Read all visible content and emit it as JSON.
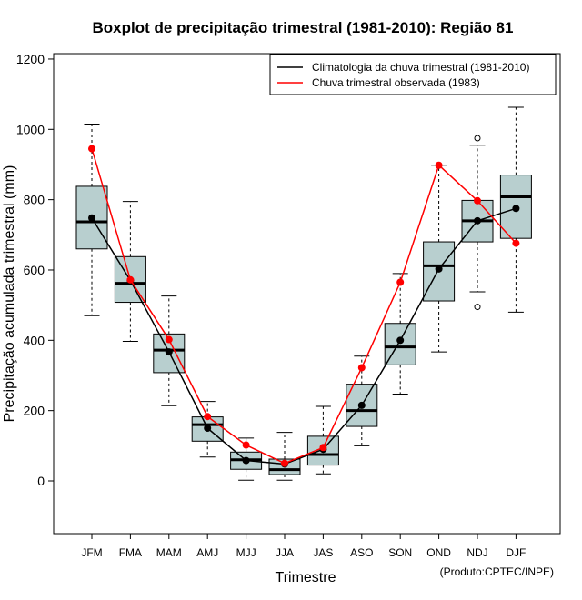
{
  "chart_data": {
    "type": "box",
    "title": "Boxplot de precipitação trimestral (1981-2010): Região 81",
    "xlabel": "Trimestre",
    "ylabel": "Precipitação acumulada trimestral (mm)",
    "ylim": [
      -150,
      1220
    ],
    "yticks": [
      0,
      200,
      400,
      600,
      800,
      1000,
      1200
    ],
    "categories": [
      "JFM",
      "FMA",
      "MAM",
      "AMJ",
      "MJJ",
      "JJA",
      "JAS",
      "ASO",
      "SON",
      "OND",
      "NDJ",
      "DJF"
    ],
    "boxes": [
      {
        "whisker_low": 470,
        "q1": 660,
        "median": 737,
        "q3": 838,
        "whisker_high": 1015,
        "outliers": []
      },
      {
        "whisker_low": 397,
        "q1": 508,
        "median": 562,
        "q3": 638,
        "whisker_high": 795,
        "outliers": []
      },
      {
        "whisker_low": 214,
        "q1": 308,
        "median": 372,
        "q3": 418,
        "whisker_high": 526,
        "outliers": []
      },
      {
        "whisker_low": 68,
        "q1": 113,
        "median": 160,
        "q3": 182,
        "whisker_high": 226,
        "outliers": []
      },
      {
        "whisker_low": 2,
        "q1": 33,
        "median": 60,
        "q3": 82,
        "whisker_high": 122,
        "outliers": []
      },
      {
        "whisker_low": 2,
        "q1": 18,
        "median": 32,
        "q3": 62,
        "whisker_high": 138,
        "outliers": []
      },
      {
        "whisker_low": 20,
        "q1": 45,
        "median": 75,
        "q3": 127,
        "whisker_high": 212,
        "outliers": []
      },
      {
        "whisker_low": 100,
        "q1": 155,
        "median": 200,
        "q3": 275,
        "whisker_high": 355,
        "outliers": []
      },
      {
        "whisker_low": 247,
        "q1": 330,
        "median": 381,
        "q3": 448,
        "whisker_high": 590,
        "outliers": []
      },
      {
        "whisker_low": 367,
        "q1": 512,
        "median": 612,
        "q3": 680,
        "whisker_high": 898,
        "outliers": []
      },
      {
        "whisker_low": 538,
        "q1": 680,
        "median": 740,
        "q3": 798,
        "whisker_high": 955,
        "outliers": [
          975,
          495
        ]
      },
      {
        "whisker_low": 480,
        "q1": 690,
        "median": 808,
        "q3": 870,
        "whisker_high": 1063,
        "outliers": []
      }
    ],
    "series": [
      {
        "name": "Climatologia da chuva trimestral (1981-2010)",
        "color": "#000000",
        "values": [
          748,
          570,
          367,
          150,
          58,
          48,
          90,
          215,
          400,
          603,
          740,
          775
        ]
      },
      {
        "name": "Chuva trimestral observada (1983)",
        "color": "#ff0000",
        "values": [
          945,
          572,
          402,
          183,
          102,
          50,
          95,
          322,
          565,
          898,
          797,
          676
        ]
      }
    ],
    "legend_position": "top-right",
    "box_fill": "#b8cfcf",
    "credit": "(Produto:CPTEC/INPE)"
  }
}
